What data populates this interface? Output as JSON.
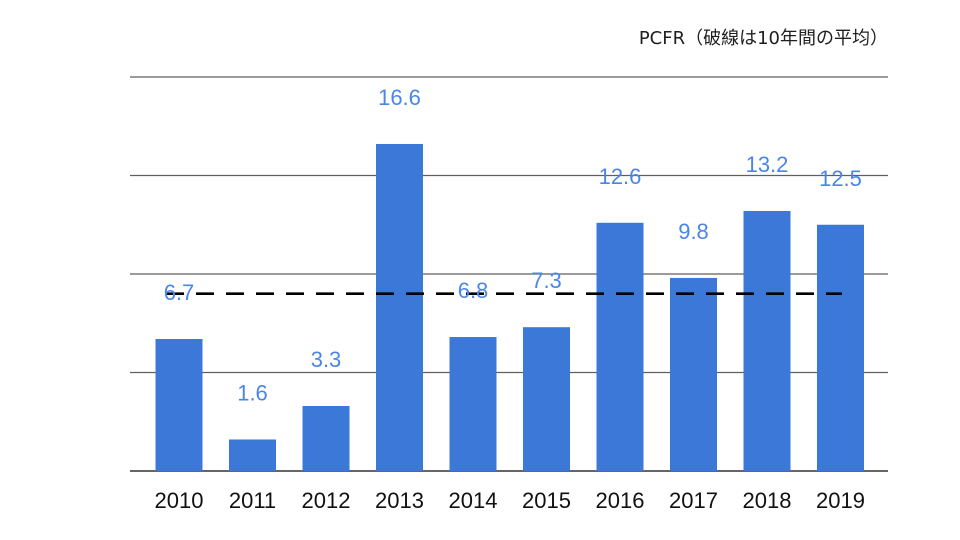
{
  "chart_data": {
    "type": "bar",
    "title": "PCFR（破線は10年間の平均）",
    "categories": [
      "2010",
      "2011",
      "2012",
      "2013",
      "2014",
      "2015",
      "2016",
      "2017",
      "2018",
      "2019"
    ],
    "values": [
      6.7,
      1.6,
      3.3,
      16.6,
      6.8,
      7.3,
      12.6,
      9.8,
      13.2,
      12.5
    ],
    "data_labels": [
      "6.7",
      "1.6",
      "3.3",
      "16.6",
      "6.8",
      "7.3",
      "12.6",
      "9.8",
      "13.2",
      "12.5"
    ],
    "average": 9.0,
    "ylim": [
      0,
      20
    ],
    "y_gridlines": [
      0,
      5,
      10,
      15,
      20
    ],
    "y_tick_labels_shown": false,
    "grid": true,
    "legend": "none",
    "colors": {
      "bar": "#3b78d8",
      "data_label": "#4a86e8",
      "average_line": "#000000",
      "grid": "#5f5f5f"
    }
  }
}
